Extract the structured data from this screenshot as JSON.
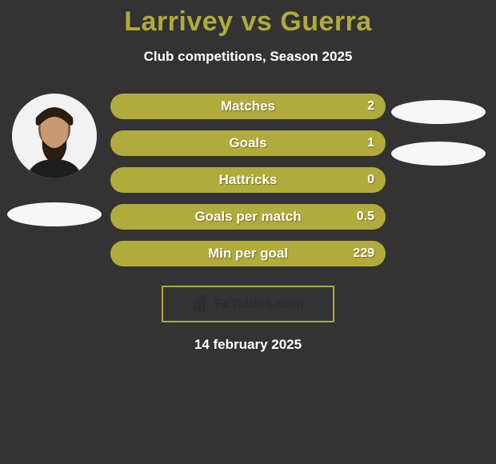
{
  "colors": {
    "background": "#333333",
    "accent": "#b0ab3a",
    "bar_fill": "#b0ab3a",
    "ellipse": "#f7f7f7",
    "avatar_bg": "#f2f2f2",
    "brand_border": "#b0ab3a",
    "text": "#ffffff",
    "brand_text": "#2c2c2c"
  },
  "title": {
    "text": "Larrivey vs Guerra",
    "color": "#b0ab3a",
    "fontsize": 34,
    "fontweight": 800
  },
  "subtitle": {
    "text": "Club competitions, Season 2025",
    "fontsize": 17,
    "fontweight": 700
  },
  "bars": {
    "height": 32,
    "radius": 16,
    "fill": "#b0ab3a",
    "label_fontsize": 17,
    "value_fontsize": 16,
    "items": [
      {
        "label": "Matches",
        "value": "2"
      },
      {
        "label": "Goals",
        "value": "1"
      },
      {
        "label": "Hattricks",
        "value": "0"
      },
      {
        "label": "Goals per match",
        "value": "0.5"
      },
      {
        "label": "Min per goal",
        "value": "229"
      }
    ]
  },
  "left_player": {
    "avatar": true
  },
  "right_player": {
    "avatar": false
  },
  "brand": {
    "text": "FcTables.com",
    "border_color": "#b0ab3a",
    "text_color": "#2c2c2c",
    "fontsize": 17
  },
  "date": {
    "text": "14 february 2025",
    "fontsize": 17,
    "fontweight": 700
  }
}
